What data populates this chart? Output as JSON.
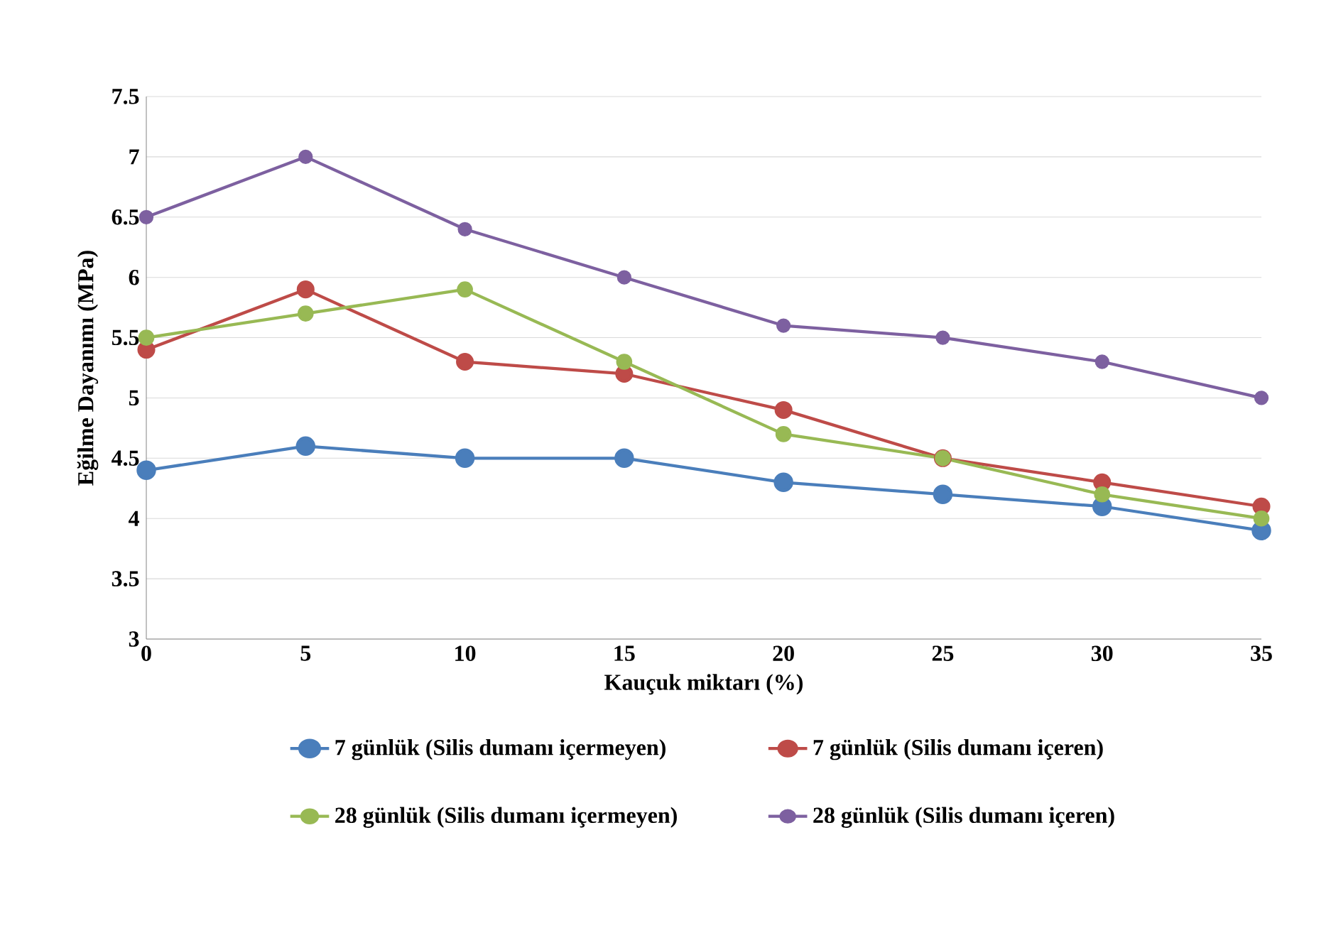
{
  "chart_data": {
    "type": "line",
    "xlabel": "Kauçuk miktarı (%)",
    "ylabel": "Eğilme Dayanımı (MPa)",
    "x": [
      0,
      5,
      10,
      15,
      20,
      25,
      30,
      35
    ],
    "series": [
      {
        "name": "7 günlük (Silis dumanı içermeyen)",
        "color": "#4a7ebb",
        "values": [
          4.4,
          4.6,
          4.5,
          4.5,
          4.3,
          4.2,
          4.1,
          3.9
        ]
      },
      {
        "name": "7 günlük (Silis dumanı içeren)",
        "color": "#be4b48",
        "values": [
          5.4,
          5.9,
          5.3,
          5.2,
          4.9,
          4.5,
          4.3,
          4.1
        ]
      },
      {
        "name": "28 günlük (Silis dumanı içermeyen)",
        "color": "#98b954",
        "values": [
          5.5,
          5.7,
          5.9,
          5.3,
          4.7,
          4.5,
          4.2,
          4.0
        ]
      },
      {
        "name": "28 günlük (Silis dumanı içeren)",
        "color": "#7d60a0",
        "values": [
          6.5,
          7.0,
          6.4,
          6.0,
          5.6,
          5.5,
          5.3,
          5.0
        ]
      }
    ],
    "xlim": [
      0,
      35
    ],
    "xticks": [
      0,
      5,
      10,
      15,
      20,
      25,
      30,
      35
    ],
    "ylim": [
      3,
      7.5
    ],
    "yticks": [
      3,
      3.5,
      4,
      4.5,
      5,
      5.5,
      6,
      6.5,
      7,
      7.5
    ],
    "grid": "y",
    "legend": "bottom",
    "marker": "circle",
    "line_style": "solid"
  }
}
